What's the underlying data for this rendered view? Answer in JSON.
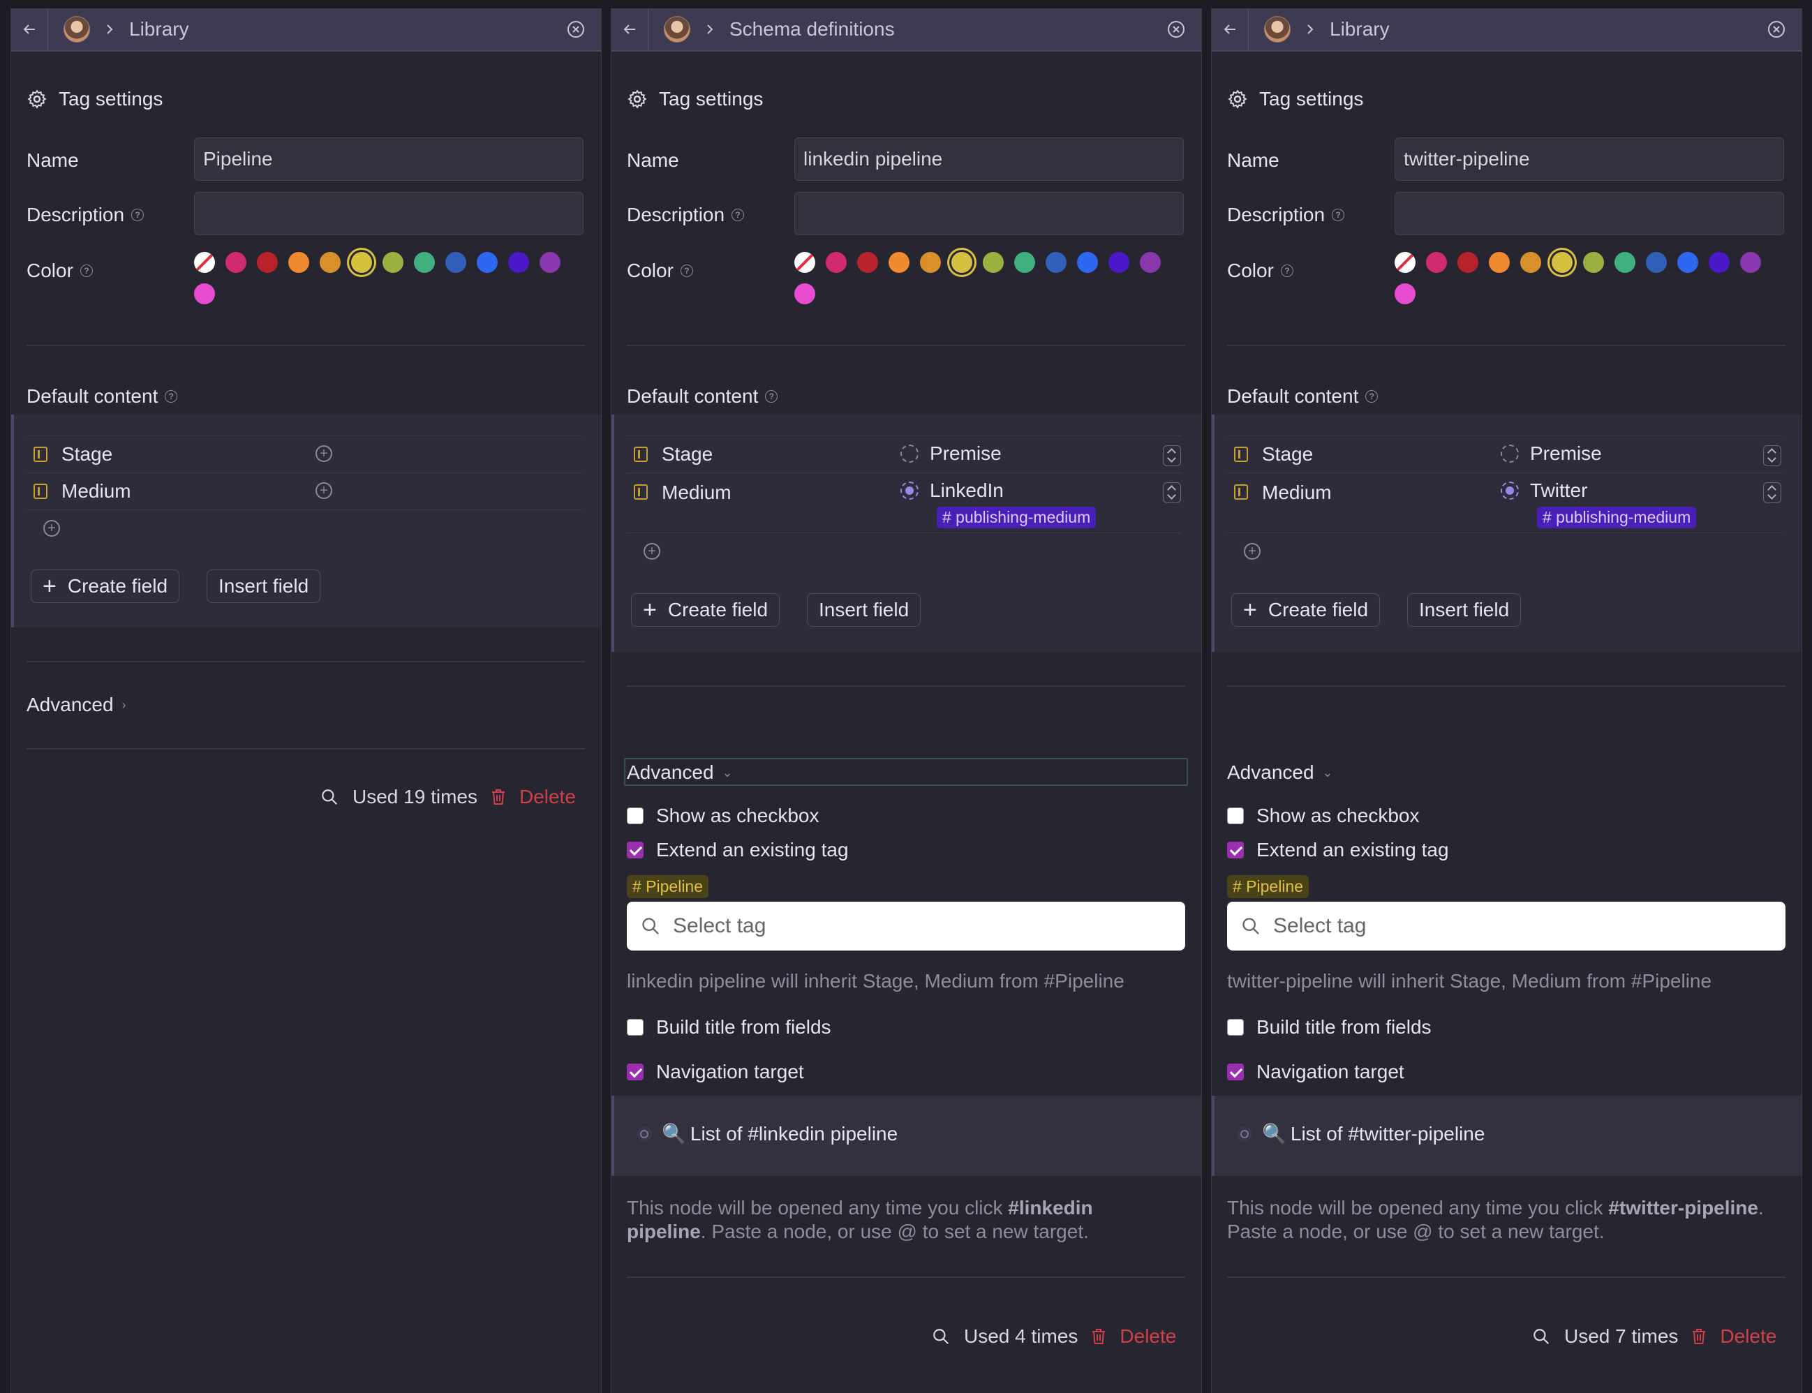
{
  "panels": [
    {
      "breadcrumb": "Library",
      "header": "Tag settings",
      "name_label": "Name",
      "name_value": "Pipeline",
      "description_label": "Description",
      "description_value": "",
      "color_label": "Color",
      "default_content_label": "Default content",
      "fields": [
        {
          "name": "Stage",
          "value": ""
        },
        {
          "name": "Medium",
          "value": ""
        }
      ],
      "create_field": "Create field",
      "insert_field": "Insert field",
      "advanced_label": "Advanced",
      "used": "Used 19 times",
      "delete": "Delete"
    },
    {
      "breadcrumb": "Schema definitions",
      "header": "Tag settings",
      "name_label": "Name",
      "name_value": "linkedin pipeline",
      "description_label": "Description",
      "description_value": "",
      "color_label": "Color",
      "default_content_label": "Default content",
      "fields": [
        {
          "name": "Stage",
          "value": "Premise"
        },
        {
          "name": "Medium",
          "value": "LinkedIn",
          "chip": "# publishing-medium"
        }
      ],
      "create_field": "Create field",
      "insert_field": "Insert field",
      "advanced_label": "Advanced",
      "show_as_checkbox": "Show as checkbox",
      "extend_existing_tag": "Extend an existing tag",
      "extended_tag": "# Pipeline",
      "select_tag_placeholder": "Select tag",
      "inherit_text": "linkedin pipeline will inherit Stage, Medium from #Pipeline",
      "build_title": "Build title from fields",
      "navigation_target": "Navigation target",
      "nav_list": "List of #linkedin pipeline",
      "nav_desc_pre": "This node will be opened any time you click ",
      "nav_desc_tag": "#linkedin pipeline",
      "nav_desc_post": ". Paste a node, or use @ to set a new target.",
      "used": "Used 4 times",
      "delete": "Delete"
    },
    {
      "breadcrumb": "Library",
      "header": "Tag settings",
      "name_label": "Name",
      "name_value": "twitter-pipeline",
      "description_label": "Description",
      "description_value": "",
      "color_label": "Color",
      "default_content_label": "Default content",
      "fields": [
        {
          "name": "Stage",
          "value": "Premise"
        },
        {
          "name": "Medium",
          "value": "Twitter",
          "chip": "# publishing-medium"
        }
      ],
      "create_field": "Create field",
      "insert_field": "Insert field",
      "advanced_label": "Advanced",
      "show_as_checkbox": "Show as checkbox",
      "extend_existing_tag": "Extend an existing tag",
      "extended_tag": "# Pipeline",
      "select_tag_placeholder": "Select tag",
      "inherit_text": "twitter-pipeline will inherit Stage, Medium from #Pipeline",
      "build_title": "Build title from fields",
      "navigation_target": "Navigation target",
      "nav_list": "List of #twitter-pipeline",
      "nav_desc_pre": "This node will be opened any time you click ",
      "nav_desc_tag": "#twitter-pipeline",
      "nav_desc_post": ". Paste a node, or use @ to set a new target.",
      "used": "Used 7 times",
      "delete": "Delete"
    }
  ],
  "swatch_colors": [
    "none",
    "#d02a70",
    "#b8222a",
    "#f08a30",
    "#d8902c",
    "#d6c040",
    "#9ab040",
    "#40b080",
    "#3060b8",
    "#2f68f0",
    "#4a18c8",
    "#8a38b0",
    "#e84cd0"
  ],
  "selected_swatch": 5
}
